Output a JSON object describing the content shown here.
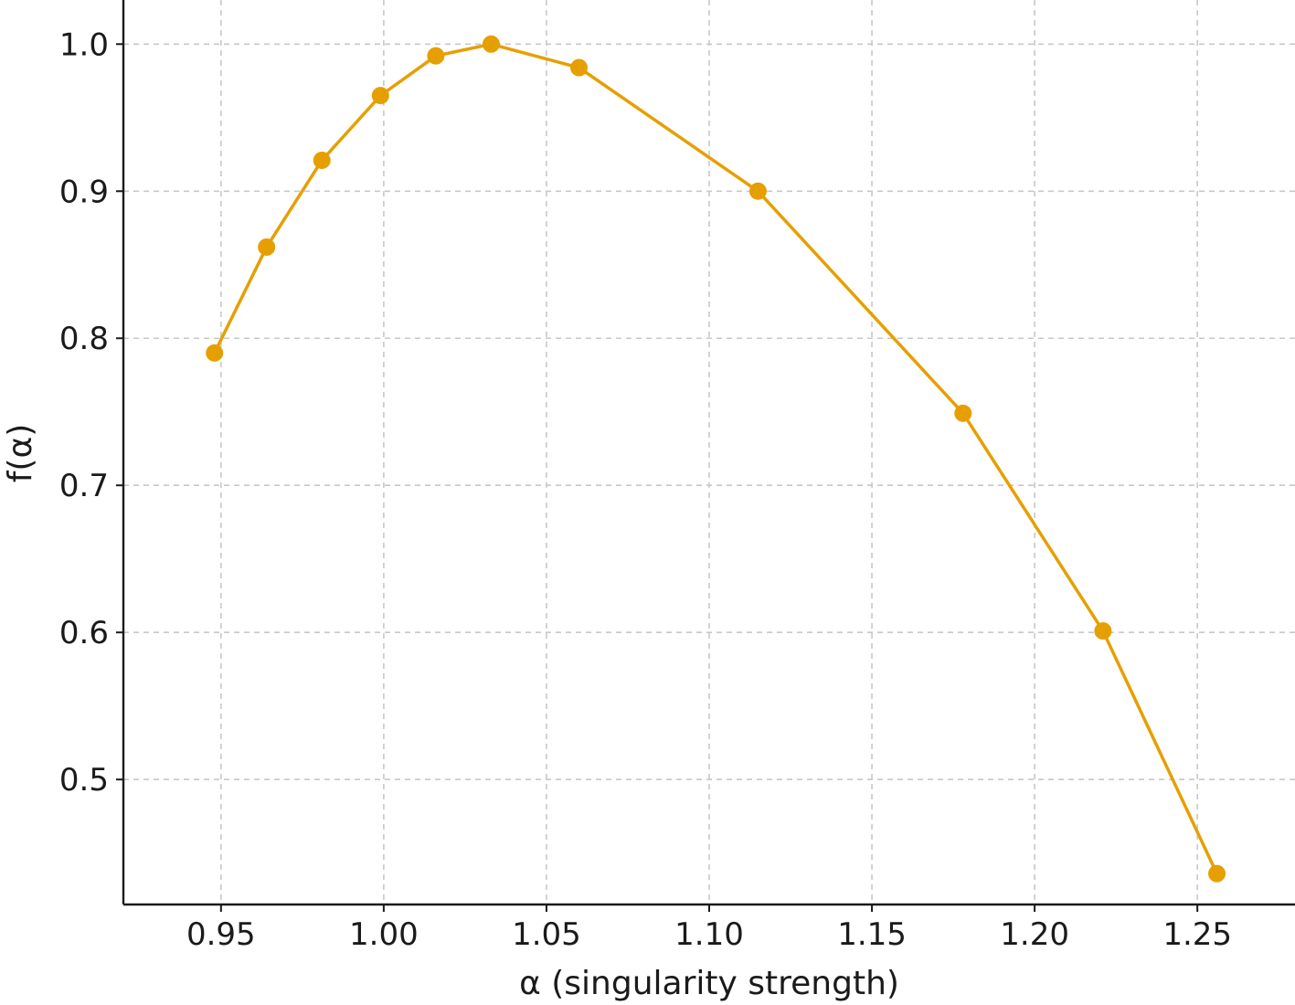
{
  "chart_data": {
    "type": "line",
    "title": "",
    "xlabel": "α (singularity strength)",
    "ylabel": "f(α)",
    "xlim": [
      0.92,
      1.28
    ],
    "ylim": [
      0.415,
      1.03
    ],
    "grid": true,
    "x_ticks": [
      "0.95",
      "1.00",
      "1.05",
      "1.10",
      "1.15",
      "1.20",
      "1.25"
    ],
    "y_ticks": [
      "0.5",
      "0.6",
      "0.7",
      "0.8",
      "0.9",
      "1.0"
    ],
    "series": [
      {
        "color": "#E69F00",
        "marker": "circle",
        "x": [
          0.948,
          0.964,
          0.981,
          0.999,
          1.016,
          1.033,
          1.06,
          1.115,
          1.178,
          1.221,
          1.256
        ],
        "y": [
          0.79,
          0.862,
          0.921,
          0.965,
          0.992,
          1.0,
          0.984,
          0.9,
          0.749,
          0.601,
          0.436
        ]
      }
    ]
  }
}
